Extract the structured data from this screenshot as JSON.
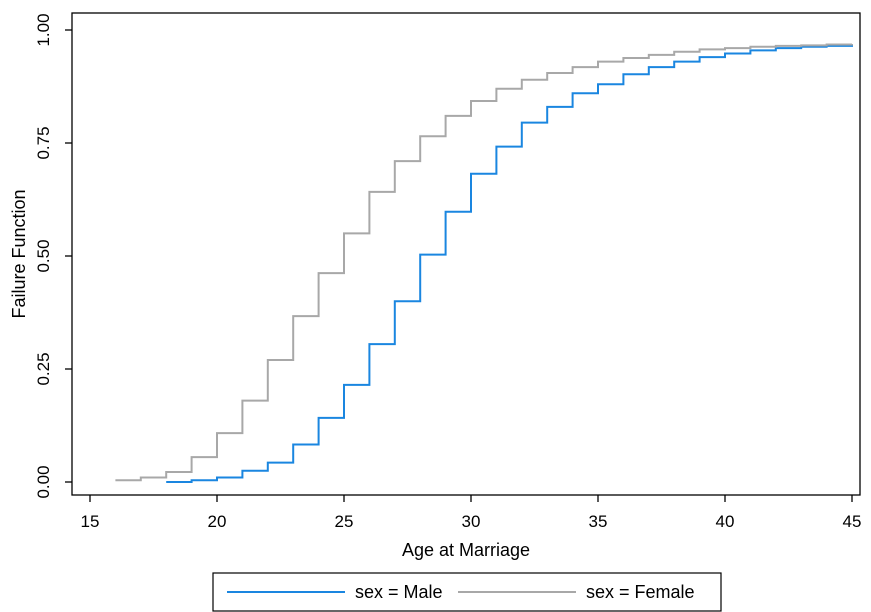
{
  "chart_data": {
    "type": "line",
    "step": true,
    "title": "",
    "xlabel": "Age at Marriage",
    "ylabel": "Failure Function",
    "xlim": [
      16,
      45
    ],
    "ylim": [
      0,
      1
    ],
    "xticks": [
      15,
      20,
      25,
      30,
      35,
      40,
      45
    ],
    "xtick_labels": [
      "15",
      "20",
      "25",
      "30",
      "35",
      "40",
      "45"
    ],
    "yticks": [
      0,
      0.25,
      0.5,
      0.75,
      1
    ],
    "ytick_labels": [
      "0.00",
      "0.25",
      "0.50",
      "0.75",
      "1.00"
    ],
    "grid": false,
    "legend_position": "bottom",
    "series": [
      {
        "name": "sex = Male",
        "color": "#1a86e0",
        "x": [
          18,
          19,
          20,
          21,
          22,
          23,
          24,
          25,
          26,
          27,
          28,
          29,
          30,
          31,
          32,
          33,
          34,
          35,
          36,
          37,
          38,
          39,
          40,
          41,
          42,
          43,
          44,
          45
        ],
        "y": [
          0.0,
          0.004,
          0.01,
          0.025,
          0.043,
          0.083,
          0.142,
          0.215,
          0.305,
          0.4,
          0.503,
          0.598,
          0.682,
          0.742,
          0.795,
          0.83,
          0.86,
          0.88,
          0.902,
          0.918,
          0.93,
          0.94,
          0.948,
          0.955,
          0.96,
          0.963,
          0.965,
          0.966
        ]
      },
      {
        "name": "sex = Female",
        "color": "#a8a8a8",
        "x": [
          16,
          17,
          18,
          19,
          20,
          21,
          22,
          23,
          24,
          25,
          26,
          27,
          28,
          29,
          30,
          31,
          32,
          33,
          34,
          35,
          36,
          37,
          38,
          39,
          40,
          41,
          42,
          43,
          44,
          45
        ],
        "y": [
          0.004,
          0.01,
          0.022,
          0.055,
          0.108,
          0.18,
          0.27,
          0.367,
          0.462,
          0.55,
          0.642,
          0.71,
          0.765,
          0.81,
          0.843,
          0.87,
          0.89,
          0.905,
          0.918,
          0.93,
          0.938,
          0.945,
          0.952,
          0.957,
          0.96,
          0.963,
          0.965,
          0.966,
          0.968,
          0.969
        ]
      }
    ]
  }
}
